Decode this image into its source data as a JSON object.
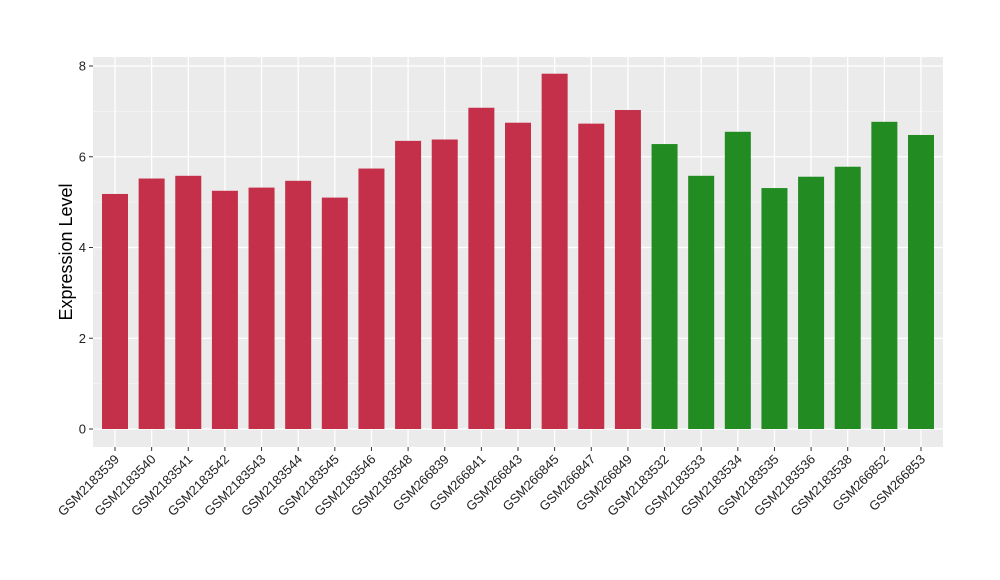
{
  "chart_data": {
    "type": "bar",
    "title": "",
    "xlabel": "",
    "ylabel": "Expression Level",
    "ylim": [
      0,
      8.2
    ],
    "yticks": [
      0,
      2,
      4,
      6,
      8
    ],
    "grid": true,
    "panel_background": "#ebebeb",
    "categories": [
      "GSM2183539",
      "GSM2183540",
      "GSM2183541",
      "GSM2183542",
      "GSM2183543",
      "GSM2183544",
      "GSM2183545",
      "GSM2183546",
      "GSM2183548",
      "GSM266839",
      "GSM266841",
      "GSM266843",
      "GSM266845",
      "GSM266847",
      "GSM266849",
      "GSM2183532",
      "GSM2183533",
      "GSM2183534",
      "GSM2183535",
      "GSM2183536",
      "GSM2183538",
      "GSM266852",
      "GSM266853"
    ],
    "values": [
      5.18,
      5.52,
      5.58,
      5.25,
      5.32,
      5.47,
      5.1,
      5.74,
      6.35,
      6.38,
      7.08,
      6.75,
      7.83,
      6.73,
      7.03,
      6.28,
      5.58,
      6.55,
      5.31,
      5.56,
      5.78,
      6.77,
      6.48
    ],
    "groups": [
      "red",
      "red",
      "red",
      "red",
      "red",
      "red",
      "red",
      "red",
      "red",
      "red",
      "red",
      "red",
      "red",
      "red",
      "red",
      "green",
      "green",
      "green",
      "green",
      "green",
      "green",
      "green",
      "green"
    ],
    "colors": {
      "red": "#c4304a",
      "green": "#228b22"
    }
  }
}
